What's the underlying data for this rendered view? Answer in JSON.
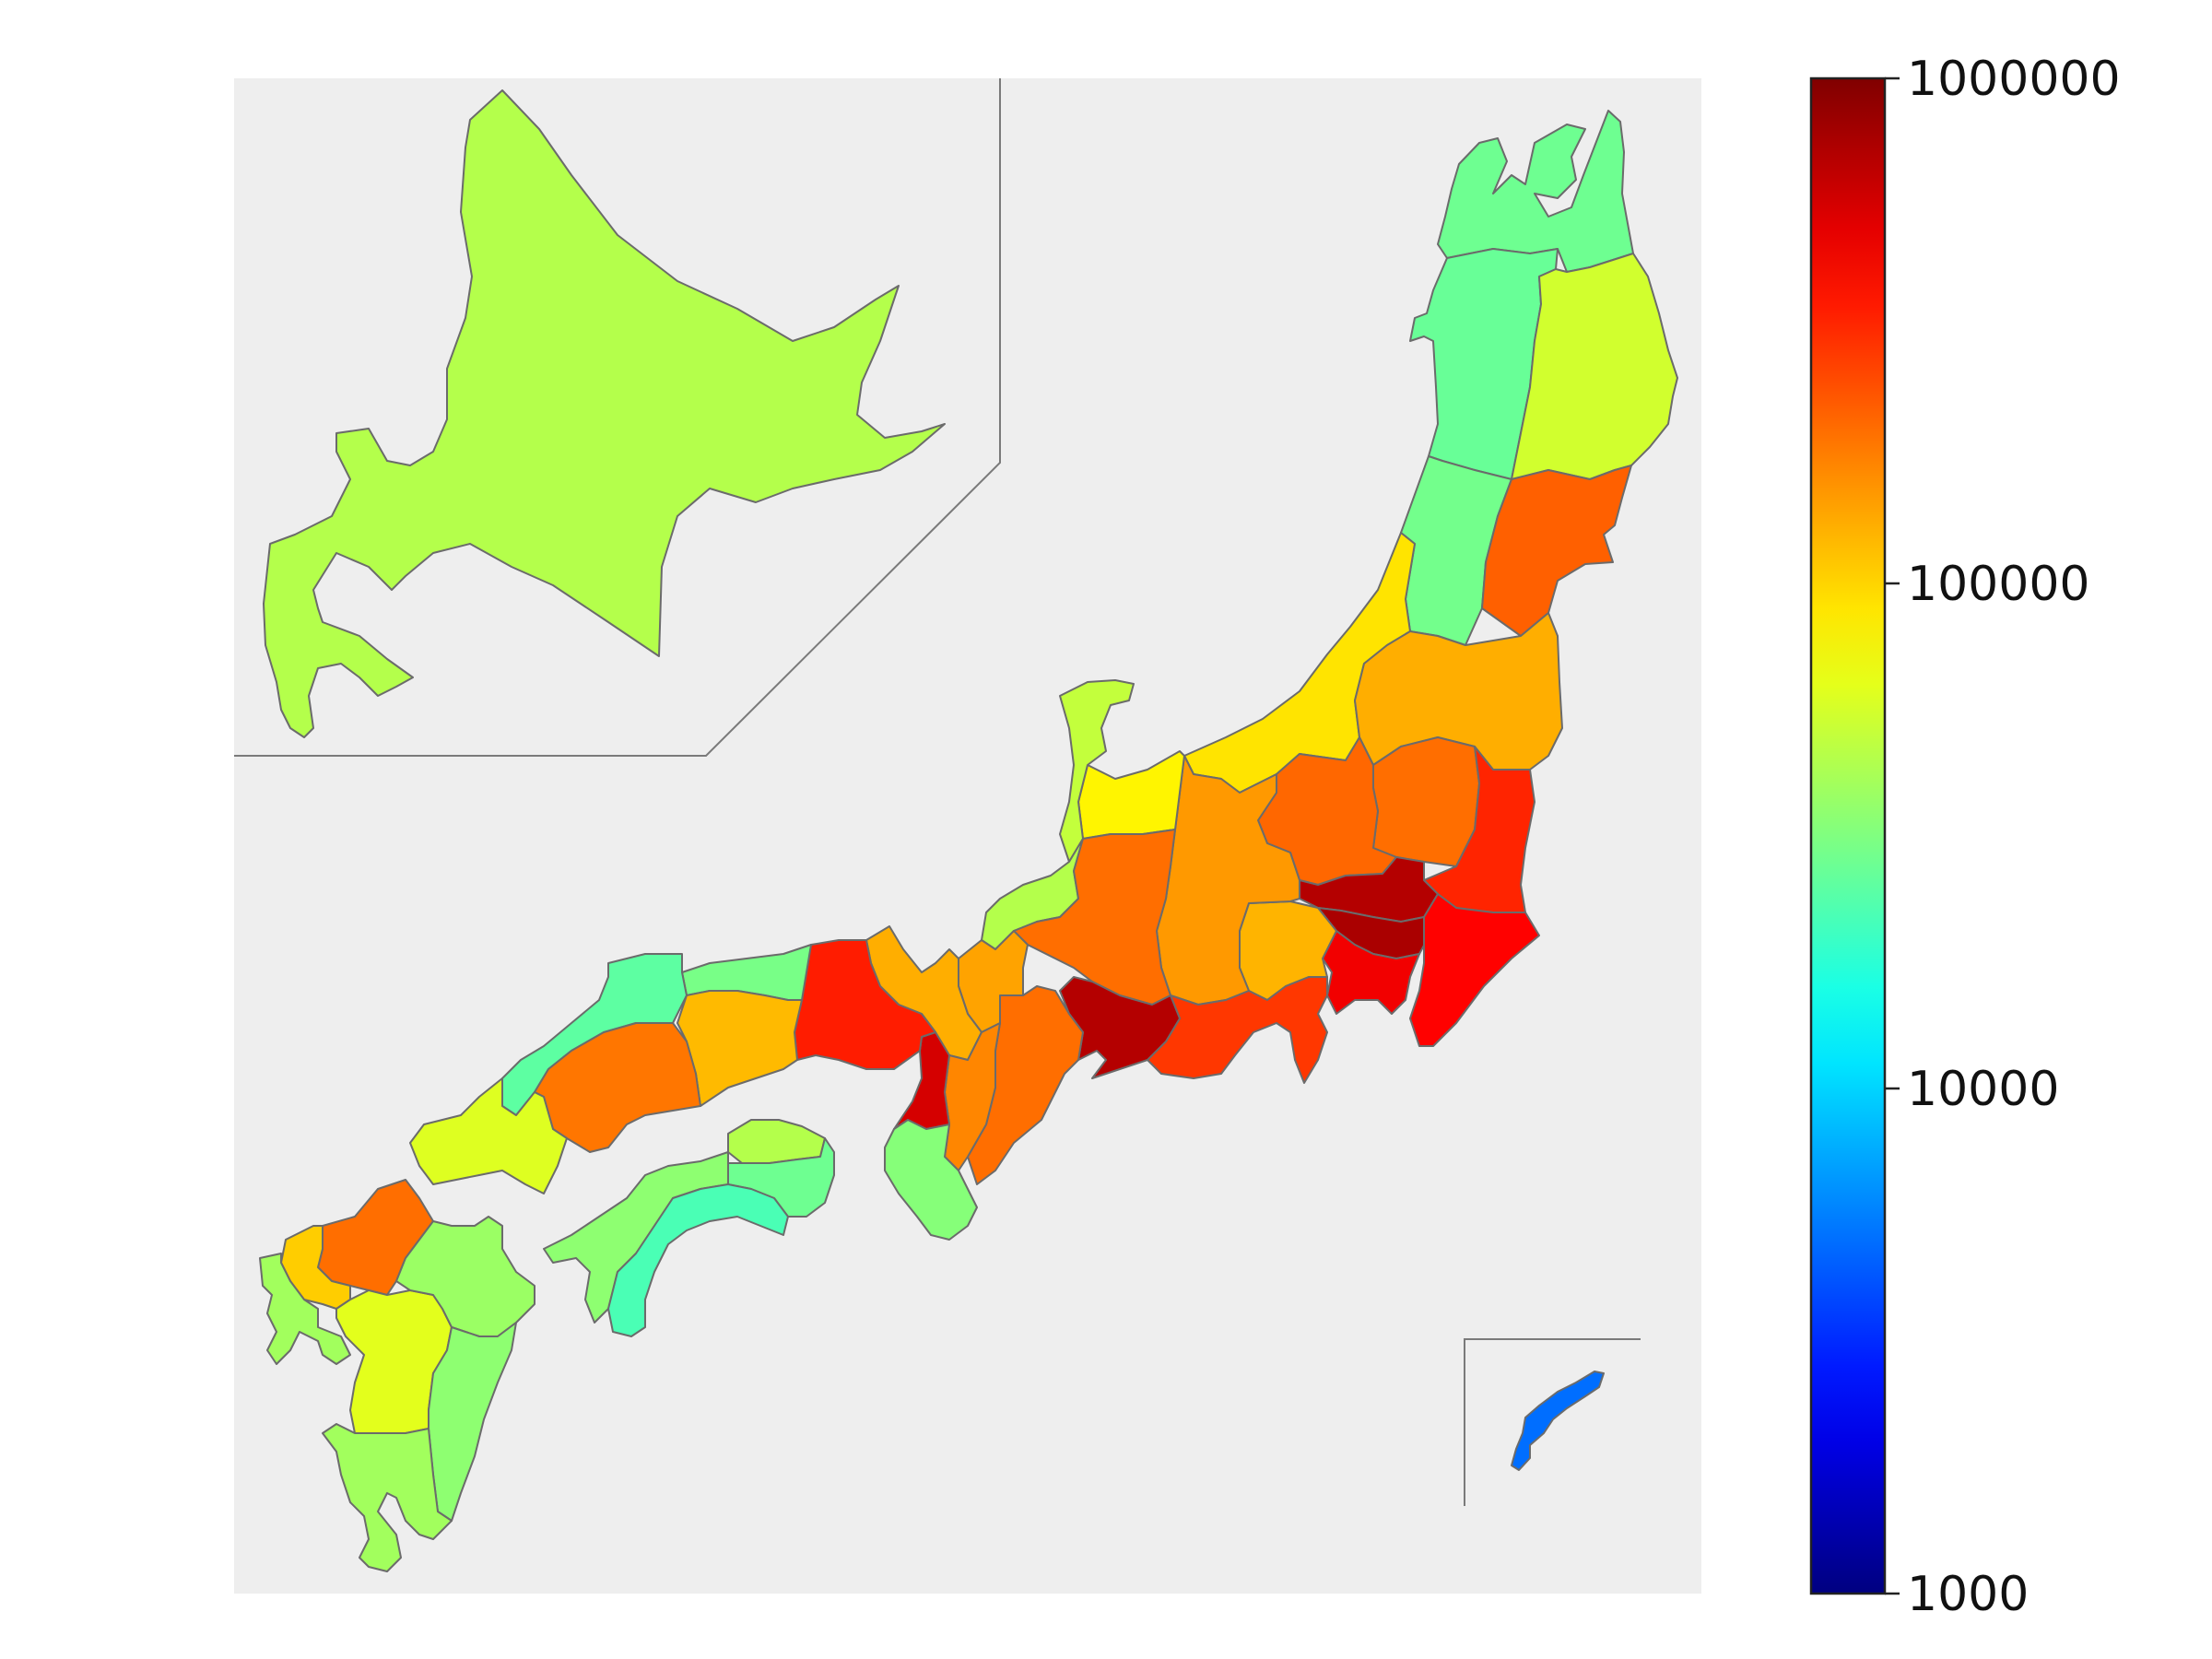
{
  "map": {
    "background_color": "#eeeeee",
    "colormap": "jet",
    "scale": "log",
    "regions": [
      {
        "id": "hokkaido",
        "value": 45000
      },
      {
        "id": "aomori",
        "value": 28000
      },
      {
        "id": "akita",
        "value": 27000
      },
      {
        "id": "iwate",
        "value": 55000
      },
      {
        "id": "yamagata",
        "value": 29000
      },
      {
        "id": "miyagi",
        "value": 220000
      },
      {
        "id": "niigata",
        "value": 90000
      },
      {
        "id": "fukushima",
        "value": 130000
      },
      {
        "id": "tochigi",
        "value": 200000
      },
      {
        "id": "ibaraki",
        "value": 330000
      },
      {
        "id": "gunma",
        "value": 210000
      },
      {
        "id": "saitama",
        "value": 700000
      },
      {
        "id": "tokyo",
        "value": 750000
      },
      {
        "id": "chiba",
        "value": 420000
      },
      {
        "id": "kanagawa",
        "value": 460000
      },
      {
        "id": "yamanashi",
        "value": 125000
      },
      {
        "id": "nagano",
        "value": 150000
      },
      {
        "id": "toyama",
        "value": 80000
      },
      {
        "id": "ishikawa",
        "value": 50000
      },
      {
        "id": "fukui",
        "value": 45000
      },
      {
        "id": "gifu",
        "value": 200000
      },
      {
        "id": "shizuoka",
        "value": 290000
      },
      {
        "id": "aichi",
        "value": 700000
      },
      {
        "id": "mie",
        "value": 200000
      },
      {
        "id": "shiga",
        "value": 140000
      },
      {
        "id": "kyoto",
        "value": 130000
      },
      {
        "id": "nara",
        "value": 170000
      },
      {
        "id": "osaka",
        "value": 560000
      },
      {
        "id": "hyogo",
        "value": 350000
      },
      {
        "id": "wakayama",
        "value": 33000
      },
      {
        "id": "tottori",
        "value": 30000
      },
      {
        "id": "shimane",
        "value": 25000
      },
      {
        "id": "okayama",
        "value": 120000
      },
      {
        "id": "hiroshima",
        "value": 190000
      },
      {
        "id": "yamaguchi",
        "value": 60000
      },
      {
        "id": "kagawa",
        "value": 45000
      },
      {
        "id": "tokushima",
        "value": 28000
      },
      {
        "id": "ehime",
        "value": 35000
      },
      {
        "id": "kochi",
        "value": 22000
      },
      {
        "id": "fukuoka",
        "value": 200000
      },
      {
        "id": "saga",
        "value": 105000
      },
      {
        "id": "nagasaki",
        "value": 40000
      },
      {
        "id": "kumamoto",
        "value": 62000
      },
      {
        "id": "oita",
        "value": 38000
      },
      {
        "id": "miyazaki",
        "value": 35000
      },
      {
        "id": "kagoshima",
        "value": 40000
      },
      {
        "id": "okinawa",
        "value": 5000
      }
    ]
  },
  "colorbar": {
    "min": 1000,
    "max": 1000000,
    "tick_values": [
      1000000,
      100000,
      10000,
      1000
    ],
    "tick_labels": [
      "1000000",
      "100000",
      "10000",
      "1000"
    ]
  }
}
